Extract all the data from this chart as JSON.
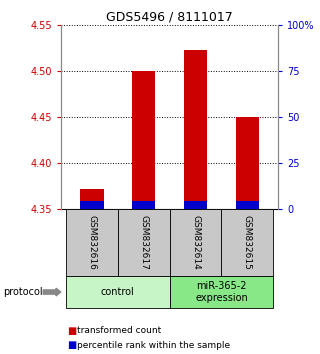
{
  "title": "GDS5496 / 8111017",
  "samples": [
    "GSM832616",
    "GSM832617",
    "GSM832614",
    "GSM832615"
  ],
  "red_values": [
    4.372,
    4.5,
    4.523,
    4.45
  ],
  "blue_values": [
    4.358,
    4.358,
    4.359,
    4.358
  ],
  "base_value": 4.35,
  "ylim_left": [
    4.35,
    4.55
  ],
  "yticks_left": [
    4.35,
    4.4,
    4.45,
    4.5,
    4.55
  ],
  "ylim_right": [
    0,
    100
  ],
  "yticks_right": [
    0,
    25,
    50,
    75,
    100
  ],
  "ytick_right_labels": [
    "0",
    "25",
    "50",
    "75",
    "100%"
  ],
  "groups": [
    {
      "label": "control",
      "samples": [
        0,
        1
      ],
      "color": "#c8f5c8"
    },
    {
      "label": "miR-365-2\nexpression",
      "samples": [
        2,
        3
      ],
      "color": "#88e888"
    }
  ],
  "bar_width": 0.45,
  "red_color": "#cc0000",
  "blue_color": "#0000cc",
  "gray_color": "#c8c8c8",
  "protocol_label": "protocol",
  "legend_red": "transformed count",
  "legend_blue": "percentile rank within the sample",
  "grid_color": "#000000",
  "left_tick_color": "#cc0000",
  "right_tick_color": "#0000cc",
  "title_fontsize": 9
}
